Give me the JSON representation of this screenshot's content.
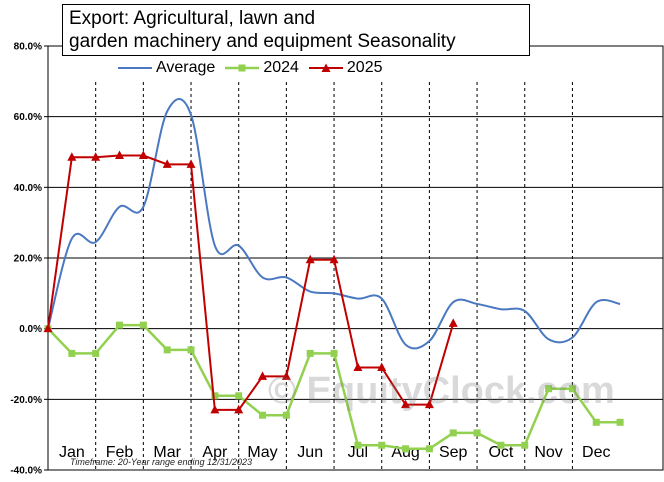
{
  "chart_data": {
    "type": "line",
    "title_lines": [
      "Export: Agricultural, lawn and",
      "garden machinery and equipment Seasonality"
    ],
    "categories": [
      "Jan",
      "Feb",
      "Mar",
      "Apr",
      "May",
      "Jun",
      "Jul",
      "Aug",
      "Sep",
      "Oct",
      "Nov",
      "Dec"
    ],
    "y_ticks": [
      "80.0%",
      "60.0%",
      "40.0%",
      "20.0%",
      "0.0%",
      "-20.0%",
      "-40.0%"
    ],
    "ylim": [
      -40,
      80
    ],
    "xlim": [
      0,
      12.9
    ],
    "legend": [
      "Average",
      "2024",
      "2025"
    ],
    "series": [
      {
        "name": "Average",
        "color": "#4a78c1",
        "marker": "none",
        "smooth": true,
        "points": [
          [
            0,
            0
          ],
          [
            0.5,
            25.5
          ],
          [
            1.0,
            24.5
          ],
          [
            1.5,
            34.5
          ],
          [
            2.0,
            34.5
          ],
          [
            2.5,
            61.5
          ],
          [
            3.0,
            60.5
          ],
          [
            3.5,
            23.5
          ],
          [
            4.0,
            23.5
          ],
          [
            4.5,
            14.5
          ],
          [
            5.0,
            14.5
          ],
          [
            5.5,
            10.5
          ],
          [
            6.0,
            10.0
          ],
          [
            6.5,
            8.5
          ],
          [
            7.0,
            8.5
          ],
          [
            7.5,
            -4.5
          ],
          [
            8.0,
            -3.5
          ],
          [
            8.5,
            7.5
          ],
          [
            9.0,
            7.0
          ],
          [
            9.5,
            5.5
          ],
          [
            10.0,
            5.0
          ],
          [
            10.5,
            -3.0
          ],
          [
            11.0,
            -2.5
          ],
          [
            11.5,
            7.5
          ],
          [
            12.0,
            7.0
          ]
        ]
      },
      {
        "name": "2024",
        "color": "#92d050",
        "marker": "square",
        "smooth": false,
        "points": [
          [
            0,
            0
          ],
          [
            0.5,
            -7.0
          ],
          [
            1.0,
            -7.0
          ],
          [
            1.5,
            1.0
          ],
          [
            2.0,
            1.0
          ],
          [
            2.5,
            -6.0
          ],
          [
            3.0,
            -6.0
          ],
          [
            3.5,
            -19.0
          ],
          [
            4.0,
            -19.0
          ],
          [
            4.5,
            -24.5
          ],
          [
            5.0,
            -24.5
          ],
          [
            5.5,
            -7.0
          ],
          [
            6.0,
            -7.0
          ],
          [
            6.5,
            -33.0
          ],
          [
            7.0,
            -33.0
          ],
          [
            7.5,
            -34.0
          ],
          [
            8.0,
            -34.0
          ],
          [
            8.5,
            -29.5
          ],
          [
            9.0,
            -29.5
          ],
          [
            9.5,
            -33.0
          ],
          [
            10.0,
            -33.0
          ],
          [
            10.5,
            -17.0
          ],
          [
            11.0,
            -17.0
          ],
          [
            11.5,
            -26.5
          ],
          [
            12.0,
            -26.5
          ]
        ]
      },
      {
        "name": "2025",
        "color": "#c00000",
        "marker": "triangle",
        "smooth": false,
        "points": [
          [
            0,
            0
          ],
          [
            0.5,
            48.5
          ],
          [
            1.0,
            48.5
          ],
          [
            1.5,
            49.0
          ],
          [
            2.0,
            49.0
          ],
          [
            2.5,
            46.5
          ],
          [
            3.0,
            46.5
          ],
          [
            3.5,
            -23.0
          ],
          [
            4.0,
            -23.0
          ],
          [
            4.5,
            -13.5
          ],
          [
            5.0,
            -13.5
          ],
          [
            5.5,
            19.5
          ],
          [
            6.0,
            19.5
          ],
          [
            6.5,
            -11.0
          ],
          [
            7.0,
            -11.0
          ],
          [
            7.5,
            -21.5
          ],
          [
            8.0,
            -21.5
          ],
          [
            8.5,
            1.5
          ]
        ]
      }
    ],
    "grid": "dashed vertical month lines",
    "legend_position": "top",
    "footnote": "Timeframe: 20-Year range ending 12/31/2023",
    "watermark": "© EquityClock.com"
  }
}
